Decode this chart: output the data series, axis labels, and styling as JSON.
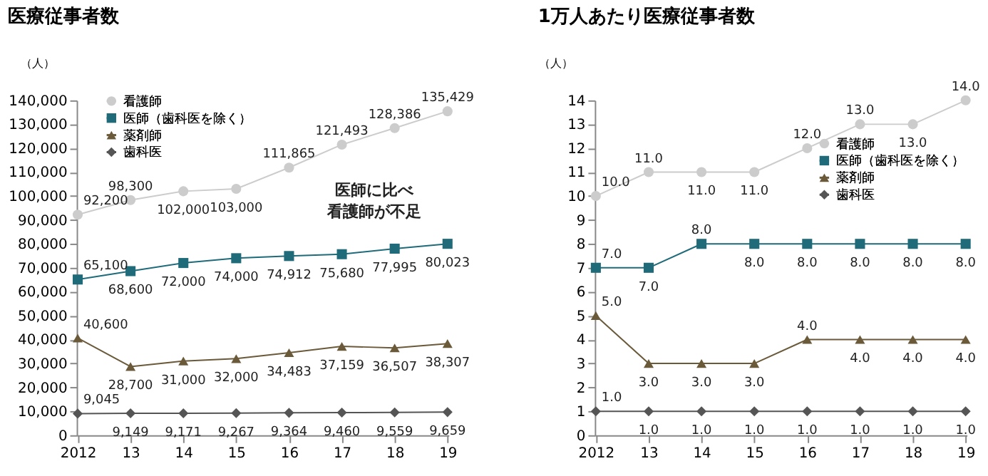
{
  "chart_data": [
    {
      "type": "line",
      "title": "医療従事者数",
      "ylabel": "（人）",
      "categories": [
        "2012",
        "13",
        "14",
        "15",
        "16",
        "17",
        "18",
        "19"
      ],
      "ylim": [
        0,
        140000
      ],
      "yticks": [
        {
          "value": 0,
          "label": "0"
        },
        {
          "value": 10000,
          "label": "10,000"
        },
        {
          "value": 20000,
          "label": "20,000"
        },
        {
          "value": 30000,
          "label": "30,000"
        },
        {
          "value": 40000,
          "label": "40,000"
        },
        {
          "value": 50000,
          "label": "50,000"
        },
        {
          "value": 60000,
          "label": "60,000"
        },
        {
          "value": 70000,
          "label": "70,000"
        },
        {
          "value": 80000,
          "label": "80,000"
        },
        {
          "value": 90000,
          "label": "90,000"
        },
        {
          "value": 100000,
          "label": "100,000"
        },
        {
          "value": 110000,
          "label": "110,000"
        },
        {
          "value": 120000,
          "label": "120,000"
        },
        {
          "value": 130000,
          "label": "130,000"
        },
        {
          "value": 140000,
          "label": "140,000"
        }
      ],
      "grid": false,
      "legend": "top left",
      "annotations": [
        "医師に比べ",
        "看護師が不足"
      ],
      "series": [
        {
          "name": "看護師",
          "color": "#cccccc",
          "marker": "circle",
          "values": [
            92200,
            98300,
            102000,
            103000,
            111865,
            121493,
            128386,
            135429
          ],
          "value_labels": [
            "92,200",
            "98,300",
            "102,000",
            "103,000",
            "111,865",
            "121,493",
            "128,386",
            "135,429"
          ]
        },
        {
          "name": "医師（歯科医を除く）",
          "color": "#1f6b7a",
          "marker": "square",
          "values": [
            65100,
            68600,
            72000,
            74000,
            74912,
            75680,
            77995,
            80023
          ],
          "value_labels": [
            "65,100",
            "68,600",
            "72,000",
            "74,000",
            "74,912",
            "75,680",
            "77,995",
            "80,023"
          ]
        },
        {
          "name": "薬剤師",
          "color": "#6b5a3a",
          "marker": "triangle",
          "values": [
            40600,
            28700,
            31000,
            32000,
            34483,
            37159,
            36507,
            38307
          ],
          "value_labels": [
            "40,600",
            "28,700",
            "31,000",
            "32,000",
            "34,483",
            "37,159",
            "36,507",
            "38,307"
          ]
        },
        {
          "name": "歯科医",
          "color": "#555555",
          "marker": "diamond",
          "values": [
            9045,
            9149,
            9171,
            9267,
            9364,
            9460,
            9559,
            9659
          ],
          "value_labels": [
            "9,045",
            "9,149",
            "9,171",
            "9,267",
            "9,364",
            "9,460",
            "9,559",
            "9,659"
          ]
        }
      ]
    },
    {
      "type": "line",
      "title": "1万人あたり医療従事者数",
      "ylabel": "（人）",
      "categories": [
        "2012",
        "13",
        "14",
        "15",
        "16",
        "17",
        "18",
        "19"
      ],
      "ylim": [
        0,
        14
      ],
      "yticks": [
        0,
        1,
        2,
        3,
        4,
        5,
        6,
        7,
        8,
        9,
        10,
        11,
        12,
        13,
        14
      ],
      "grid": false,
      "legend": "right",
      "series": [
        {
          "name": "看護師",
          "color": "#cccccc",
          "marker": "circle",
          "values": [
            10.0,
            11.0,
            11.0,
            11.0,
            12.0,
            13.0,
            13.0,
            14.0
          ],
          "value_labels": [
            "10.0",
            "11.0",
            "11.0",
            "11.0",
            "12.0",
            "13.0",
            "13.0",
            "14.0"
          ]
        },
        {
          "name": "医師（歯科医を除く）",
          "color": "#1f6b7a",
          "marker": "square",
          "values": [
            7.0,
            7.0,
            8.0,
            8.0,
            8.0,
            8.0,
            8.0,
            8.0
          ],
          "value_labels": [
            "7.0",
            "7.0",
            "8.0",
            "8.0",
            "8.0",
            "8.0",
            "8.0",
            "8.0"
          ]
        },
        {
          "name": "薬剤師",
          "color": "#6b5a3a",
          "marker": "triangle",
          "values": [
            5.0,
            3.0,
            3.0,
            3.0,
            4.0,
            4.0,
            4.0,
            4.0
          ],
          "value_labels": [
            "5.0",
            "3.0",
            "3.0",
            "3.0",
            "4.0",
            "4.0",
            "4.0",
            "4.0"
          ]
        },
        {
          "name": "歯科医",
          "color": "#555555",
          "marker": "diamond",
          "values": [
            1.0,
            1.0,
            1.0,
            1.0,
            1.0,
            1.0,
            1.0,
            1.0
          ],
          "value_labels": [
            "1.0",
            "1.0",
            "1.0",
            "1.0",
            "1.0",
            "1.0",
            "1.0",
            "1.0"
          ]
        }
      ]
    }
  ]
}
